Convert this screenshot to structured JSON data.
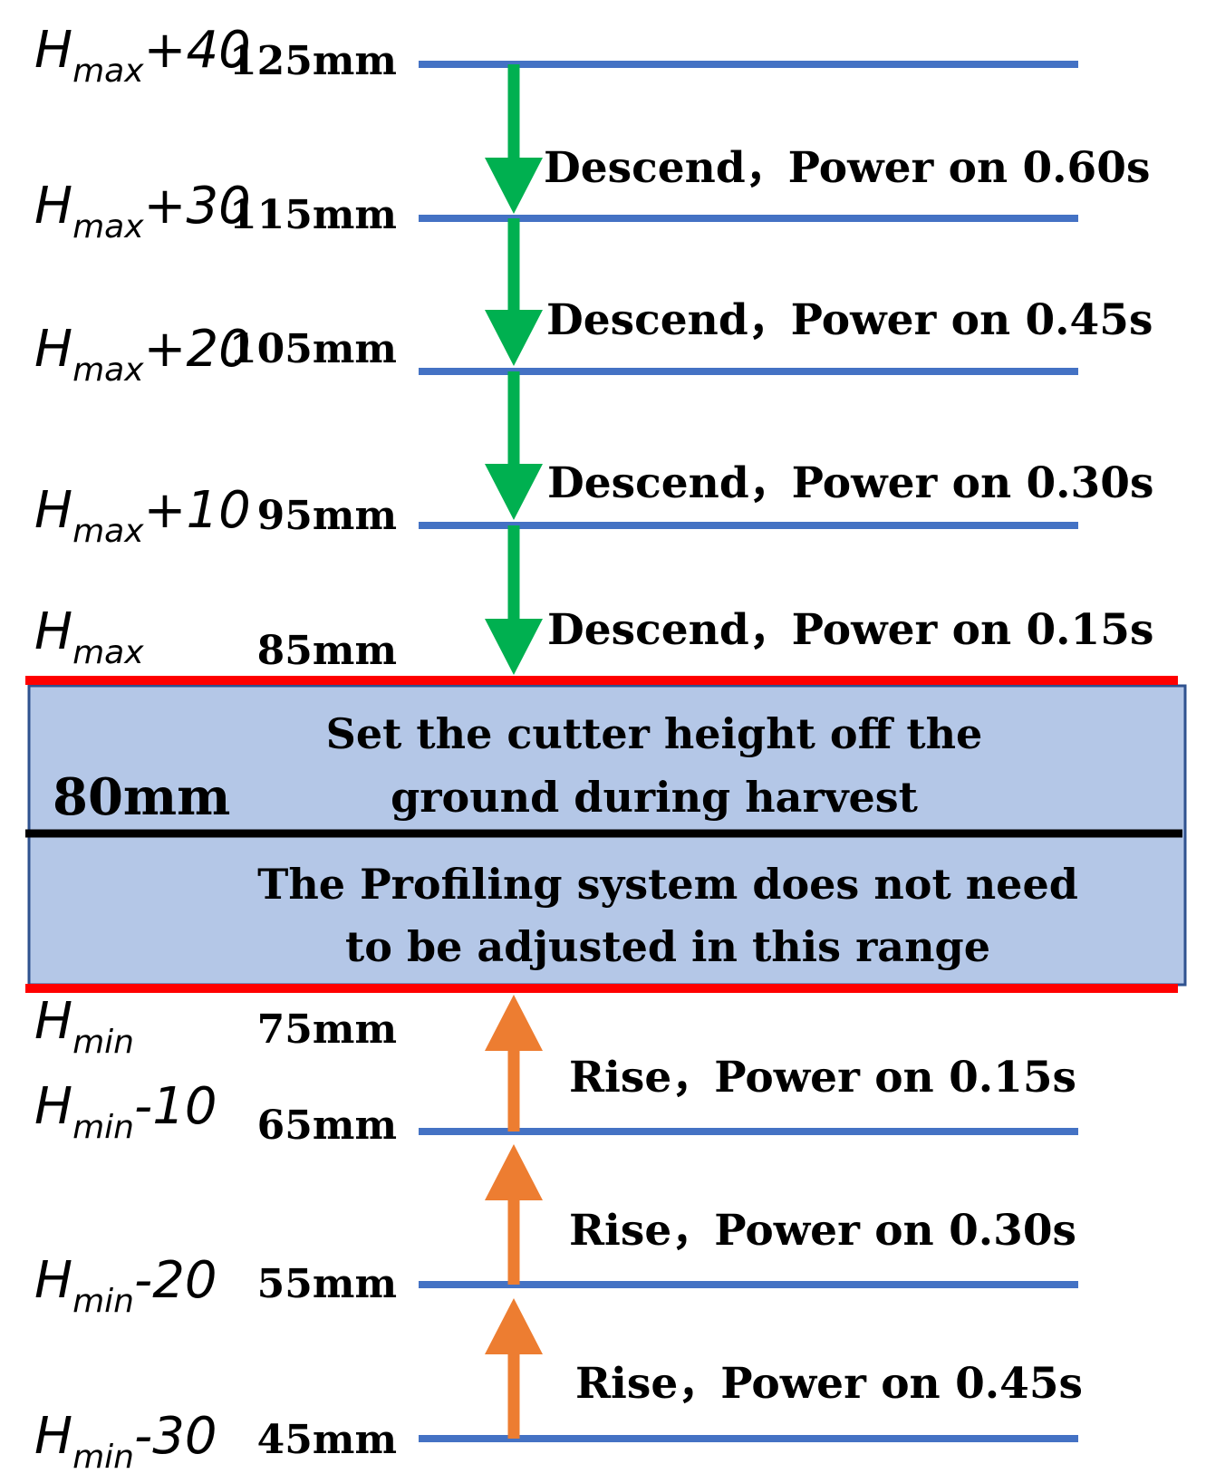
{
  "colors": {
    "level_line": "#4472C4",
    "boundary_line": "#FF0000",
    "center_line": "#000000",
    "band_fill": "#B4C7E7",
    "band_stroke": "#2F528F",
    "descend_arrow": "#00B050",
    "rise_arrow": "#ED7D31"
  },
  "levels": [
    {
      "base": "H",
      "sub": "max",
      "offset": "+40",
      "mm": "125mm",
      "line": true
    },
    {
      "base": "H",
      "sub": "max",
      "offset": "+30",
      "mm": "115mm",
      "line": true
    },
    {
      "base": "H",
      "sub": "max",
      "offset": "+20",
      "mm": "105mm",
      "line": true
    },
    {
      "base": "H",
      "sub": "max",
      "offset": "+10",
      "mm": "95mm",
      "line": true
    },
    {
      "base": "H",
      "sub": "max",
      "offset": "",
      "mm": "85mm",
      "line": false
    },
    {
      "base": "H",
      "sub": "min",
      "offset": "",
      "mm": "75mm",
      "line": false
    },
    {
      "base": "H",
      "sub": "min",
      "offset": "-10",
      "mm": "65mm",
      "line": true
    },
    {
      "base": "H",
      "sub": "min",
      "offset": "-20",
      "mm": "55mm",
      "line": true
    },
    {
      "base": "H",
      "sub": "min",
      "offset": "-30",
      "mm": "45mm",
      "line": true
    }
  ],
  "descend_actions": [
    "Descend，Power on 0.60s",
    "Descend，Power on 0.45s",
    "Descend，Power on 0.30s",
    "Descend，Power on 0.15s"
  ],
  "rise_actions": [
    "Rise，Power on 0.15s",
    "Rise，Power on 0.30s",
    "Rise，Power on 0.45s"
  ],
  "band": {
    "value": "80mm",
    "upper_text": [
      "Set the cutter height off the",
      "ground during harvest"
    ],
    "lower_text": [
      "The Profiling system does not need",
      "to be adjusted in this range"
    ]
  }
}
